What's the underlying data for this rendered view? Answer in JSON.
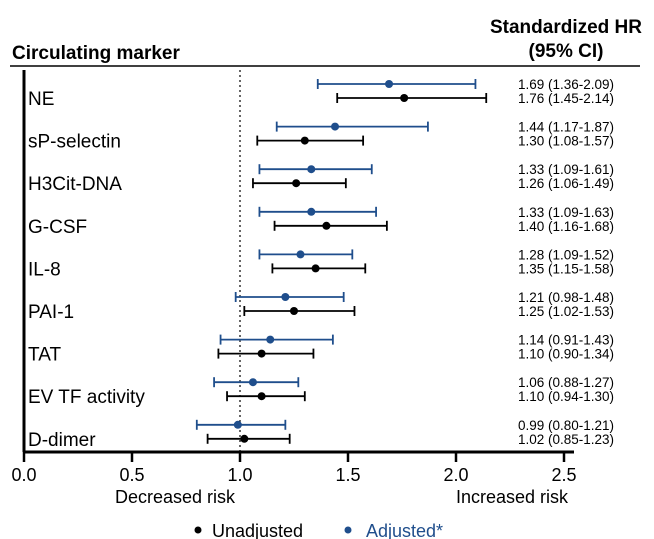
{
  "header": {
    "marker_title": "Circulating marker",
    "hr_title_line1": "Standardized HR",
    "hr_title_line2": "(95% CI)"
  },
  "risk_labels": {
    "decreased": "Decreased risk",
    "increased": "Increased risk"
  },
  "legend": {
    "unadjusted": "Unadjusted",
    "adjusted": "Adjusted*"
  },
  "colors": {
    "unadjusted": "#000000",
    "adjusted": "#1f4e8c"
  },
  "chart_data": {
    "type": "forest",
    "xlim": [
      0,
      2.75
    ],
    "xticks": [
      "0.0",
      "0.5",
      "1.0",
      "1.5",
      "2.0",
      "2.5"
    ],
    "reference_line": 1.0,
    "markers": [
      {
        "name": "NE",
        "adjusted": {
          "hr": 1.69,
          "lo": 1.36,
          "hi": 2.09,
          "label": "1.69 (1.36-2.09)"
        },
        "unadjusted": {
          "hr": 1.76,
          "lo": 1.45,
          "hi": 2.14,
          "label": "1.76 (1.45-2.14)"
        }
      },
      {
        "name": "sP-selectin",
        "adjusted": {
          "hr": 1.44,
          "lo": 1.17,
          "hi": 1.87,
          "label": "1.44 (1.17-1.87)"
        },
        "unadjusted": {
          "hr": 1.3,
          "lo": 1.08,
          "hi": 1.57,
          "label": "1.30 (1.08-1.57)"
        }
      },
      {
        "name": "H3Cit-DNA",
        "adjusted": {
          "hr": 1.33,
          "lo": 1.09,
          "hi": 1.61,
          "label": "1.33 (1.09-1.61)"
        },
        "unadjusted": {
          "hr": 1.26,
          "lo": 1.06,
          "hi": 1.49,
          "label": "1.26 (1.06-1.49)"
        }
      },
      {
        "name": "G-CSF",
        "adjusted": {
          "hr": 1.33,
          "lo": 1.09,
          "hi": 1.63,
          "label": "1.33 (1.09-1.63)"
        },
        "unadjusted": {
          "hr": 1.4,
          "lo": 1.16,
          "hi": 1.68,
          "label": "1.40 (1.16-1.68)"
        }
      },
      {
        "name": "IL-8",
        "adjusted": {
          "hr": 1.28,
          "lo": 1.09,
          "hi": 1.52,
          "label": "1.28 (1.09-1.52)"
        },
        "unadjusted": {
          "hr": 1.35,
          "lo": 1.15,
          "hi": 1.58,
          "label": "1.35 (1.15-1.58)"
        }
      },
      {
        "name": "PAI-1",
        "adjusted": {
          "hr": 1.21,
          "lo": 0.98,
          "hi": 1.48,
          "label": "1.21 (0.98-1.48)"
        },
        "unadjusted": {
          "hr": 1.25,
          "lo": 1.02,
          "hi": 1.53,
          "label": "1.25 (1.02-1.53)"
        }
      },
      {
        "name": "TAT",
        "adjusted": {
          "hr": 1.14,
          "lo": 0.91,
          "hi": 1.43,
          "label": "1.14 (0.91-1.43)"
        },
        "unadjusted": {
          "hr": 1.1,
          "lo": 0.9,
          "hi": 1.34,
          "label": "1.10 (0.90-1.34)"
        }
      },
      {
        "name": "EV TF activity",
        "adjusted": {
          "hr": 1.06,
          "lo": 0.88,
          "hi": 1.27,
          "label": "1.06 (0.88-1.27)"
        },
        "unadjusted": {
          "hr": 1.1,
          "lo": 0.94,
          "hi": 1.3,
          "label": "1.10 (0.94-1.30)"
        }
      },
      {
        "name": "D-dimer",
        "adjusted": {
          "hr": 0.99,
          "lo": 0.8,
          "hi": 1.21,
          "label": "0.99 (0.80-1.21)"
        },
        "unadjusted": {
          "hr": 1.02,
          "lo": 0.85,
          "hi": 1.23,
          "label": "1.02 (0.85-1.23)"
        }
      }
    ]
  }
}
